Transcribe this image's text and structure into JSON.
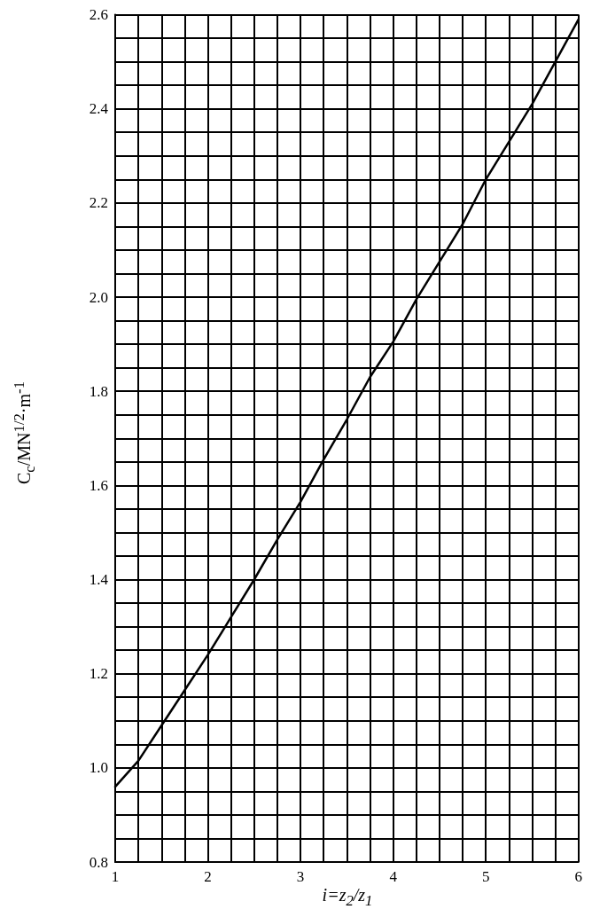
{
  "chart_data": {
    "type": "line",
    "xlabel": "i=z$_{2}$/z$_{1}$",
    "ylabel": "C$_{c}$/MN$^{1/2}$·m$^{-1}$",
    "x": [
      1,
      1.25,
      1.5,
      1.75,
      2,
      2.25,
      2.5,
      2.75,
      3,
      3.25,
      3.5,
      3.75,
      4,
      4.25,
      4.5,
      4.75,
      5,
      5.25,
      5.5,
      5.75,
      6
    ],
    "series": [
      {
        "color": "#000000",
        "values": [
          0.96,
          1.015,
          1.09,
          1.165,
          1.24,
          1.32,
          1.4,
          1.485,
          1.565,
          1.655,
          1.74,
          1.83,
          1.905,
          1.995,
          2.075,
          2.155,
          2.25,
          2.33,
          2.41,
          2.5,
          2.59
        ]
      }
    ],
    "xlim": [
      1,
      6
    ],
    "xticks": [
      1,
      2,
      3,
      4,
      5,
      6
    ],
    "ylim": [
      0.8,
      2.6
    ],
    "yticks": [
      0.8,
      {
        "value": 1,
        "label": "1.0"
      },
      1.2,
      1.4,
      1.6,
      1.8,
      {
        "value": 2,
        "label": "2.0"
      },
      2.2,
      2.4,
      2.6
    ],
    "grid": true,
    "marker": "none",
    "line_style": "solid"
  }
}
